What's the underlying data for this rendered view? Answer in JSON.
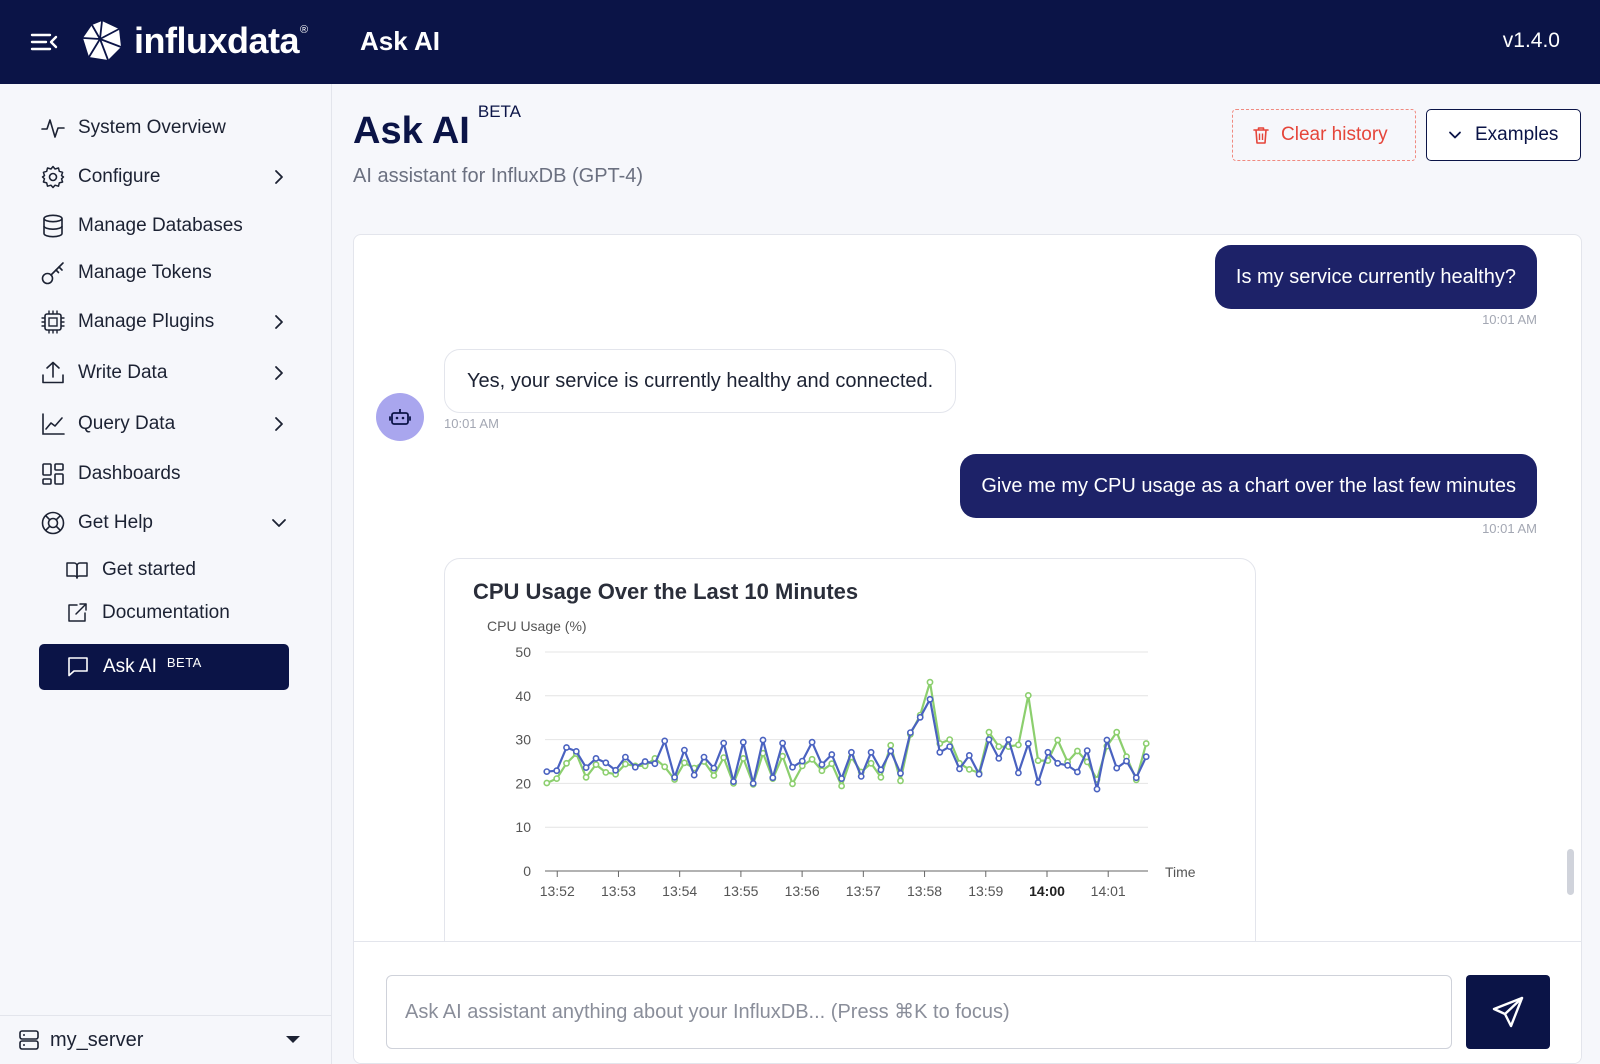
{
  "topbar": {
    "brand": "influxdata",
    "brand_mark": "®",
    "app_title": "Ask AI",
    "version": "v1.4.0"
  },
  "sidebar": {
    "items": [
      {
        "label": "System Overview",
        "icon": "activity-icon"
      },
      {
        "label": "Configure",
        "icon": "gear-icon",
        "expandable": true
      },
      {
        "label": "Manage Databases",
        "icon": "database-icon"
      },
      {
        "label": "Manage Tokens",
        "icon": "key-icon"
      },
      {
        "label": "Manage Plugins",
        "icon": "chip-icon",
        "expandable": true
      },
      {
        "label": "Write Data",
        "icon": "upload-icon",
        "expandable": true
      },
      {
        "label": "Query Data",
        "icon": "line-chart-icon",
        "expandable": true
      },
      {
        "label": "Dashboards",
        "icon": "dashboard-icon"
      },
      {
        "label": "Get Help",
        "icon": "lifebuoy-icon",
        "expanded": true
      }
    ],
    "subitems": [
      {
        "label": "Get started",
        "icon": "book-icon"
      },
      {
        "label": "Documentation",
        "icon": "external-link-icon"
      },
      {
        "label": "Ask AI",
        "badge": "BETA",
        "icon": "chat-icon",
        "active": true
      }
    ],
    "server": "my_server"
  },
  "header": {
    "title": "Ask AI",
    "badge": "BETA",
    "subtitle": "AI assistant for InfluxDB (GPT-4)",
    "clear_label": "Clear history",
    "examples_label": "Examples"
  },
  "chat": {
    "messages": [
      {
        "role": "user",
        "text": "Is my service currently healthy?",
        "time": "10:01 AM"
      },
      {
        "role": "assistant",
        "text": "Yes, your service is currently healthy and connected.",
        "time": "10:01 AM"
      },
      {
        "role": "user",
        "text": "Give me my CPU usage as a chart over the last few minutes",
        "time": "10:01 AM"
      }
    ],
    "input_placeholder": "Ask AI assistant anything about your InfluxDB... (Press ⌘K to focus)"
  },
  "colors": {
    "navy": "#0b1447",
    "user_bubble": "#1d2268",
    "series_blue": "#4a62c0",
    "series_green": "#8ccf6e",
    "danger": "#e5453a"
  },
  "chart_data": {
    "type": "line",
    "title": "CPU Usage Over the Last 10 Minutes",
    "ylabel": "CPU Usage (%)",
    "xlabel": "Time",
    "ylim": [
      0,
      50
    ],
    "yticks": [
      0,
      10,
      20,
      30,
      40,
      50
    ],
    "xticks": [
      "13:52",
      "13:53",
      "13:54",
      "13:55",
      "13:56",
      "13:57",
      "13:58",
      "13:59",
      "14:00",
      "14:01"
    ],
    "xticks_bold": [
      "14:00"
    ],
    "xlim_minutes": [
      -0.2,
      9.65
    ],
    "x_start": "13:52",
    "grid": true,
    "series": [
      {
        "color": "#4a62c0",
        "values": [
          22.7,
          22.9,
          28.2,
          27.3,
          23.6,
          25.7,
          24.7,
          23.0,
          26.0,
          23.7,
          25.0,
          24.5,
          29.7,
          21.4,
          27.6,
          21.9,
          26.0,
          23.5,
          29.2,
          20.4,
          29.4,
          20.0,
          29.9,
          21.3,
          29.2,
          23.7,
          25.1,
          29.4,
          24.3,
          26.6,
          21.1,
          27.1,
          21.6,
          27.1,
          23.1,
          27.4,
          22.3,
          31.6,
          35.1,
          39.2,
          27.1,
          28.4,
          23.3,
          26.4,
          22.1,
          30.0,
          25.7,
          30.0,
          22.4,
          29.1,
          20.2,
          27.1,
          24.6,
          24.1,
          22.6,
          27.5,
          18.7,
          29.9,
          23.5,
          25.1,
          21.3,
          26.1
        ]
      },
      {
        "color": "#8ccf6e",
        "values": [
          20.1,
          21.1,
          24.6,
          26.8,
          21.4,
          24.3,
          22.5,
          22.1,
          24.4,
          24.0,
          24.0,
          25.7,
          23.8,
          20.9,
          24.7,
          23.5,
          25.0,
          21.8,
          25.9,
          20.0,
          25.7,
          19.8,
          26.9,
          21.1,
          26.2,
          19.9,
          24.0,
          25.5,
          22.9,
          24.5,
          19.4,
          26.0,
          22.6,
          24.6,
          21.4,
          28.7,
          20.6,
          31.2,
          35.6,
          43.1,
          29.1,
          30.0,
          24.6,
          23.2,
          22.4,
          31.7,
          28.4,
          28.4,
          28.8,
          40.1,
          25.2,
          25.2,
          29.9,
          24.9,
          27.4,
          24.9,
          20.9,
          28.5,
          31.7,
          26.1,
          20.8,
          29.1
        ]
      }
    ]
  }
}
